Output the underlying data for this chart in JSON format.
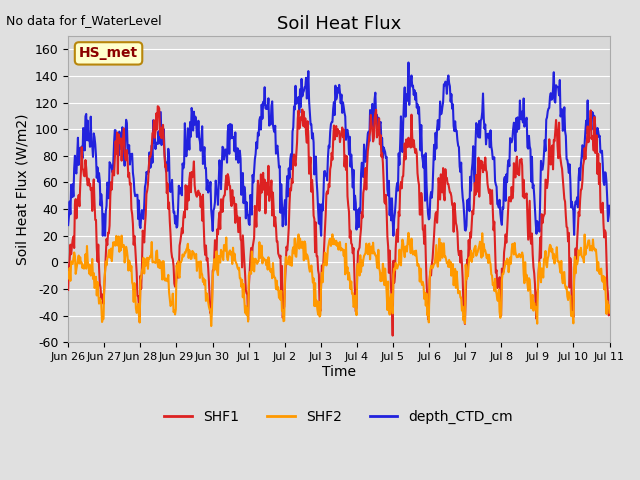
{
  "title": "Soil Heat Flux",
  "subtitle": "No data for f_WaterLevel",
  "ylabel": "Soil Heat Flux (W/m2)",
  "xlabel": "Time",
  "ylim": [
    -60,
    170
  ],
  "annotation_label": "HS_met",
  "fig_bg_color": "#e0e0e0",
  "plot_bg_color": "#d8d8d8",
  "grid_color": "white",
  "series": {
    "SHF1": {
      "color": "#dd2222",
      "lw": 1.5
    },
    "SHF2": {
      "color": "#ff9900",
      "lw": 1.5
    },
    "depth_CTD_cm": {
      "color": "#2222dd",
      "lw": 1.5
    }
  },
  "xtick_labels": [
    "Jun 26",
    "Jun 27",
    "Jun 28",
    "Jun 29",
    "Jun 30",
    "Jul 1",
    "Jul 2",
    "Jul 3",
    "Jul 4",
    "Jul 5",
    "Jul 6",
    "Jul 7",
    "Jul 8",
    "Jul 9",
    "Jul 10",
    "Jul 11"
  ],
  "ytick_labels": [
    -60,
    -40,
    -20,
    0,
    20,
    40,
    60,
    80,
    100,
    120,
    140,
    160
  ]
}
